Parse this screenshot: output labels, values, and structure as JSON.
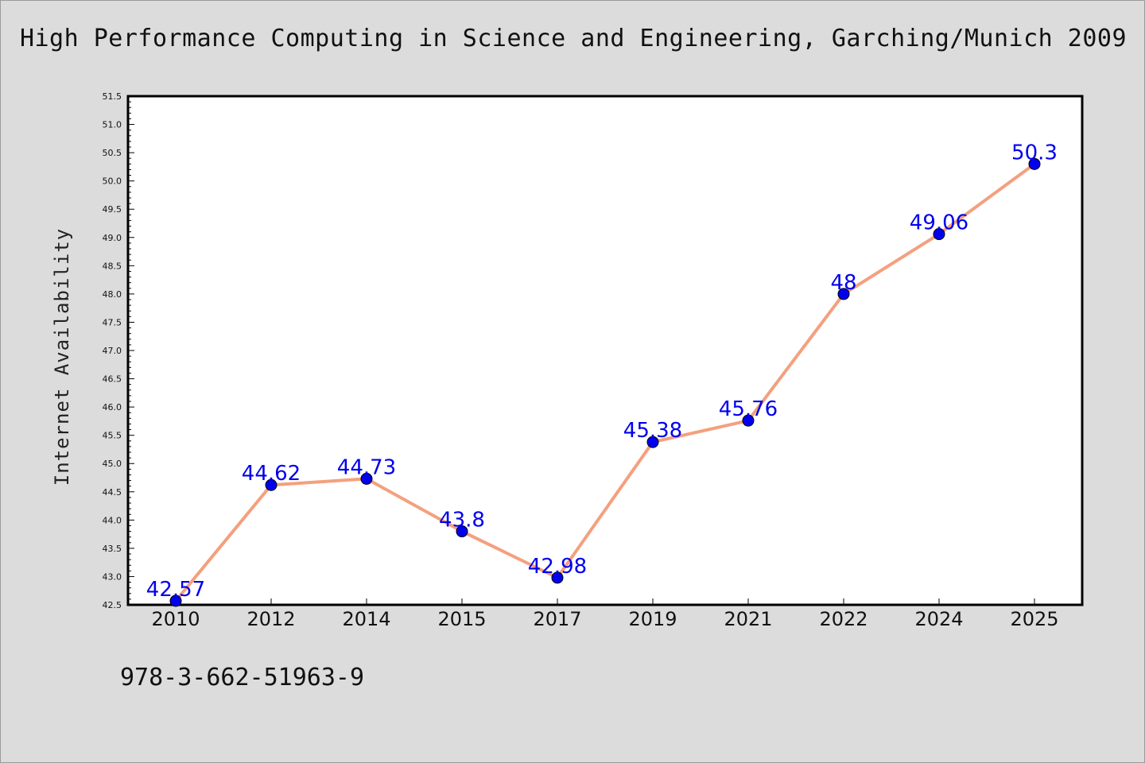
{
  "title": "High Performance Computing in Science and Engineering, Garching/Munich 2009",
  "footnote": "978-3-662-51963-9",
  "colors": {
    "background": "#dcdcdc",
    "plot_background": "#ffffff",
    "line": "#f4a07e",
    "marker": "#0000ee",
    "data_label": "#0000ee"
  },
  "chart_data": {
    "type": "line",
    "title": "High Performance Computing in Science and Engineering, Garching/Munich 2009",
    "xlabel": "",
    "ylabel": "Internet Availability",
    "categories": [
      "2010",
      "2012",
      "2014",
      "2015",
      "2017",
      "2019",
      "2021",
      "2022",
      "2024",
      "2025"
    ],
    "series": [
      {
        "values": [
          42.57,
          44.62,
          44.73,
          43.8,
          42.98,
          45.38,
          45.76,
          48,
          49.06,
          50.3
        ],
        "labels": [
          "42.57",
          "44.62",
          "44.73",
          "43.8",
          "42.98",
          "45.38",
          "45.76",
          "48",
          "49.06",
          "50.3"
        ]
      }
    ],
    "ylim": [
      42.5,
      51.5
    ],
    "yticks": [
      "42.5",
      "43.0",
      "43.5",
      "44.0",
      "44.5",
      "45.0",
      "45.5",
      "46.0",
      "46.5",
      "47.0",
      "47.5",
      "48.0",
      "48.5",
      "49.0",
      "49.5",
      "50.0",
      "50.5",
      "51.0",
      "51.5"
    ],
    "grid": false,
    "legend": "none"
  }
}
